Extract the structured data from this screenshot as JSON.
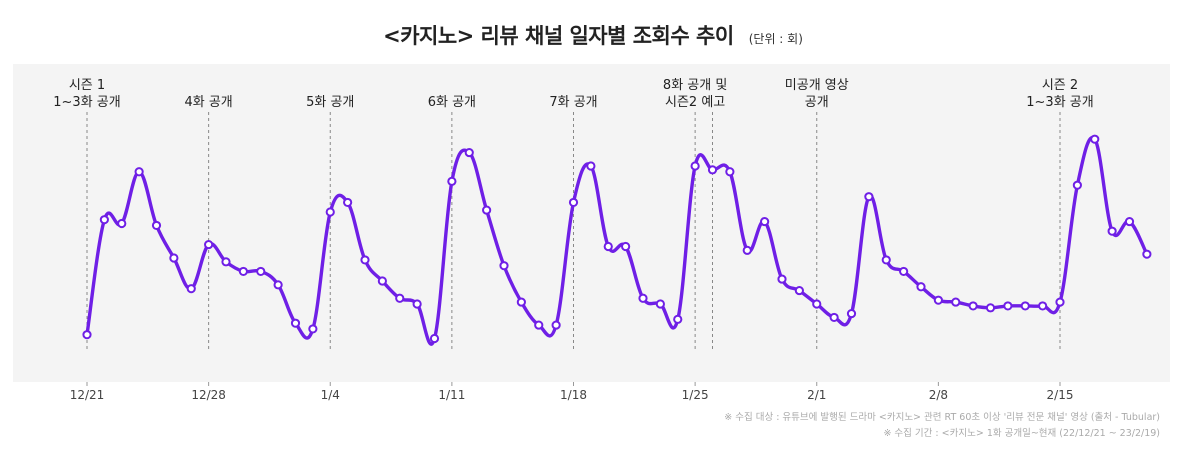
{
  "chart_data": {
    "type": "line",
    "title": "<카지노> 리뷰 채널 일자별 조회수 추이",
    "unit_label": "(단위 : 회)",
    "xlabel": "",
    "ylabel": "",
    "x_ticks": [
      "12/21",
      "12/28",
      "1/4",
      "1/11",
      "1/18",
      "1/25",
      "2/1",
      "2/8",
      "2/15"
    ],
    "grid": false,
    "legend": "none",
    "series": [
      {
        "color": "#6f1fe6",
        "values": [
          8,
          68,
          66,
          93,
          65,
          48,
          32,
          55,
          46,
          41,
          41,
          34,
          14,
          11,
          72,
          77,
          47,
          36,
          27,
          24,
          6,
          88,
          103,
          73,
          44,
          25,
          13,
          13,
          77,
          96,
          54,
          54,
          27,
          24,
          16,
          96,
          94,
          93,
          52,
          67,
          37,
          31,
          24,
          17,
          19,
          80,
          47,
          41,
          33,
          26,
          25,
          23,
          22,
          23,
          23,
          23,
          25,
          86,
          110,
          62,
          67,
          50
        ]
      }
    ],
    "ylim": [
      0,
      120
    ],
    "annotations": [
      {
        "x_index": 0,
        "lines": [
          "시즌 1",
          "1~3화 공개"
        ]
      },
      {
        "x_index": 7,
        "lines": [
          "4화 공개"
        ]
      },
      {
        "x_index": 14,
        "lines": [
          "5화 공개"
        ]
      },
      {
        "x_index": 21,
        "lines": [
          "6화 공개"
        ]
      },
      {
        "x_index": 28,
        "lines": [
          "7화 공개"
        ]
      },
      {
        "x_index": 35,
        "lines": [
          "8화 공개 및",
          "시즌2 예고"
        ]
      },
      {
        "x_index": 36,
        "lines": []
      },
      {
        "x_index": 42,
        "lines": [
          "미공개 영상",
          "공개"
        ]
      },
      {
        "x_index": 56,
        "lines": [
          "시즌 2",
          "1~3화 공개"
        ]
      }
    ]
  },
  "notes": [
    "※ 수집 대상 : 유튜브에 발행된 드라마 <카지노> 관련 RT 60초 이상 '리뷰 전문 채널' 영상 (출처 - Tubular)",
    "※ 수집 기간 : <카지노> 1화 공개일~현재 (22/12/21 ~ 23/2/19)"
  ]
}
